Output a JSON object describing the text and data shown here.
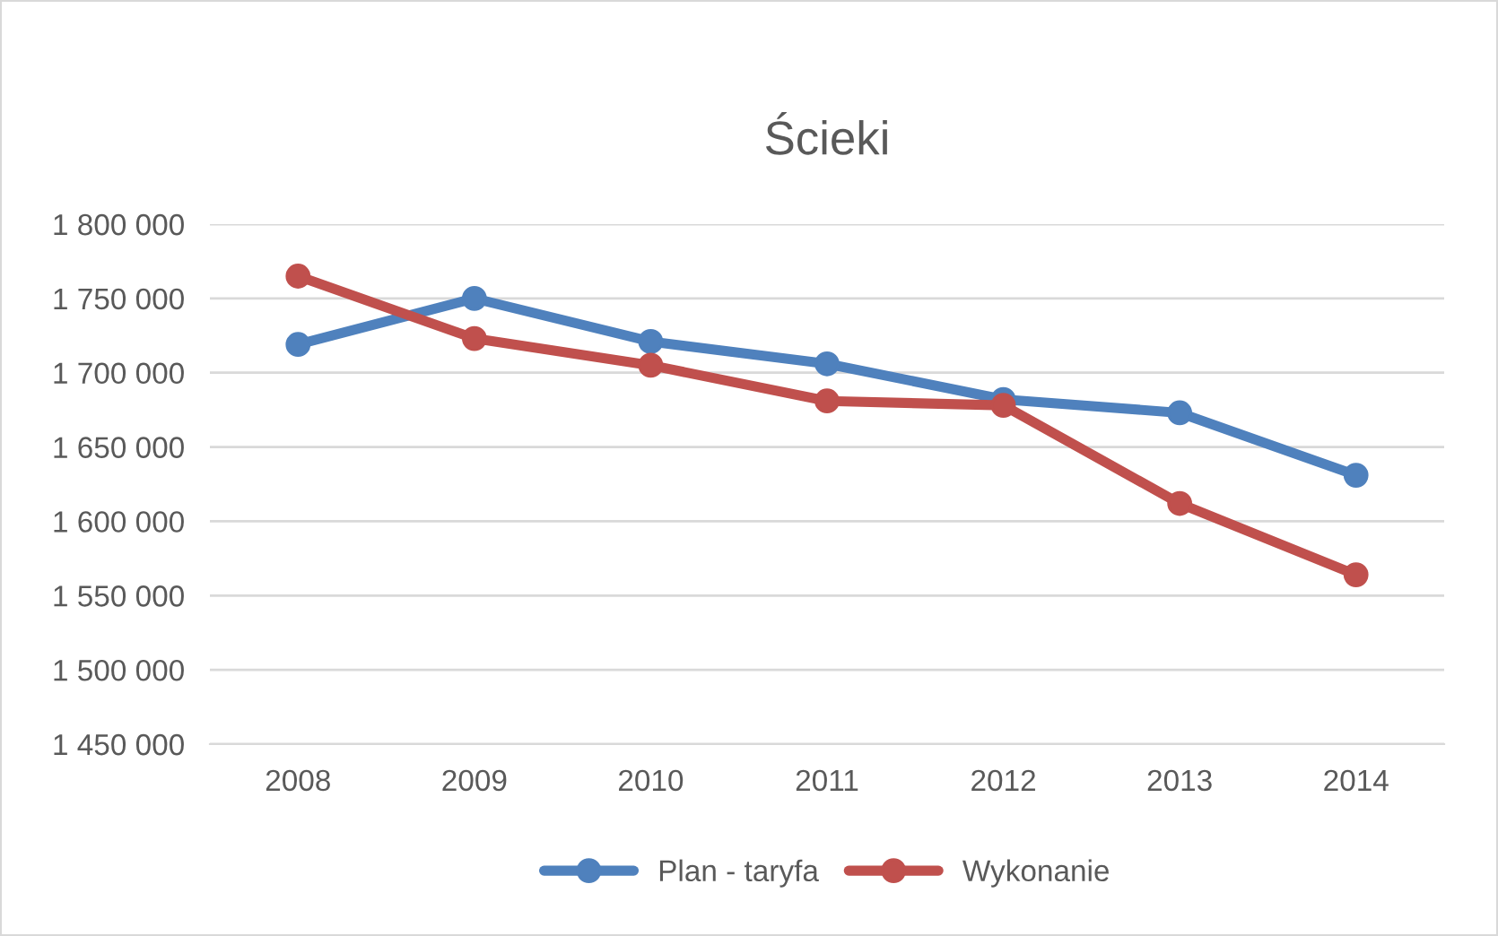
{
  "chart_data": {
    "type": "line",
    "title": "Ścieki",
    "categories": [
      "2008",
      "2009",
      "2010",
      "2011",
      "2012",
      "2013",
      "2014"
    ],
    "series": [
      {
        "name": "Plan - taryfa",
        "color": "#4f81bd",
        "values": [
          1719000,
          1750000,
          1721000,
          1706000,
          1682000,
          1673000,
          1631000
        ]
      },
      {
        "name": "Wykonanie",
        "color": "#c0504d",
        "values": [
          1765000,
          1723000,
          1705000,
          1681000,
          1678000,
          1612000,
          1564000
        ]
      }
    ],
    "ylim": [
      1450000,
      1800000
    ],
    "yticks": [
      {
        "value": 1450000,
        "label": "1 450 000"
      },
      {
        "value": 1500000,
        "label": "1 500 000"
      },
      {
        "value": 1550000,
        "label": "1 550 000"
      },
      {
        "value": 1600000,
        "label": "1 600 000"
      },
      {
        "value": 1650000,
        "label": "1 650 000"
      },
      {
        "value": 1700000,
        "label": "1 700 000"
      },
      {
        "value": 1750000,
        "label": "1 750 000"
      },
      {
        "value": 1800000,
        "label": "1 800 000"
      }
    ],
    "grid": "y",
    "legend": "bottom",
    "marker": "circle",
    "line_style": "solid"
  }
}
